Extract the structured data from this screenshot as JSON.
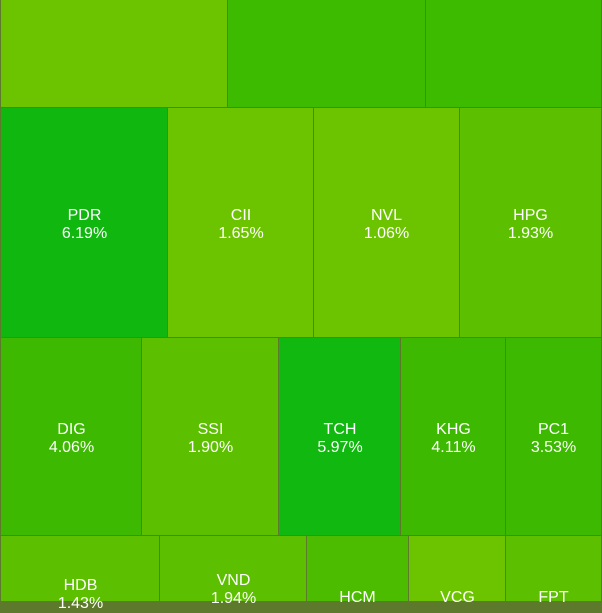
{
  "tiles": [
    {
      "symbol": "PDR",
      "change": "6.19%"
    },
    {
      "symbol": "CII",
      "change": "1.65%"
    },
    {
      "symbol": "NVL",
      "change": "1.06%"
    },
    {
      "symbol": "HPG",
      "change": "1.93%"
    },
    {
      "symbol": "DIG",
      "change": "4.06%"
    },
    {
      "symbol": "SSI",
      "change": "1.90%"
    },
    {
      "symbol": "TCH",
      "change": "5.97%"
    },
    {
      "symbol": "KHG",
      "change": "4.11%"
    },
    {
      "symbol": "PC1",
      "change": "3.53%"
    },
    {
      "symbol": "HDB",
      "change": "1.43%"
    },
    {
      "symbol": "VND",
      "change": "1.94%"
    },
    {
      "symbol": "HCM"
    },
    {
      "symbol": "VCG"
    },
    {
      "symbol": "FPT"
    }
  ]
}
